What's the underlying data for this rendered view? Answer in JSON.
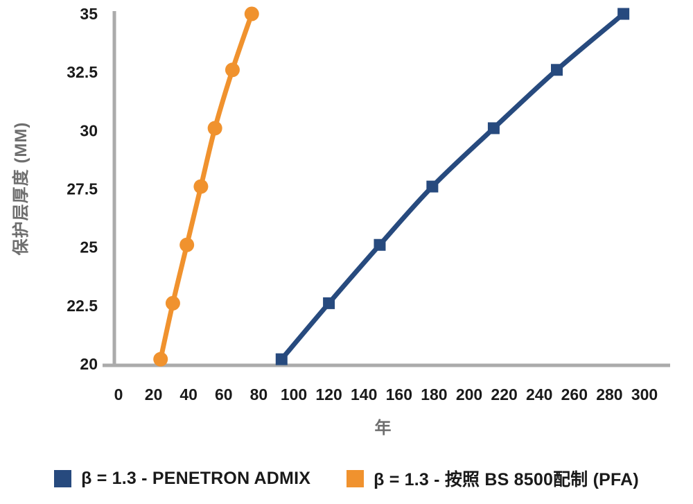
{
  "chart_data": {
    "type": "line",
    "title": "",
    "xlabel": "年",
    "ylabel": "保护层厚度 (MM)",
    "xlim": [
      0,
      300
    ],
    "ylim": [
      20,
      35
    ],
    "x_ticks": [
      0,
      20,
      40,
      60,
      80,
      100,
      120,
      140,
      160,
      180,
      200,
      220,
      240,
      260,
      280,
      300
    ],
    "y_ticks": [
      20,
      22.5,
      25,
      27.5,
      30,
      32.5,
      35
    ],
    "grid": false,
    "legend_position": "bottom",
    "axis_color": "#ababab",
    "tick_text_color": "#1a1a1a",
    "axis_title_color": "#6e6e6e",
    "series": [
      {
        "name": "β = 1.3 - PENETRON ADMIX",
        "color": "#274a7e",
        "marker": "square",
        "points": [
          [
            93,
            20.2
          ],
          [
            120,
            22.6
          ],
          [
            149,
            25.1
          ],
          [
            179,
            27.6
          ],
          [
            214,
            30.1
          ],
          [
            250,
            32.6
          ],
          [
            288,
            35
          ]
        ]
      },
      {
        "name": "β = 1.3 - 按照 BS 8500配制 (PFA)",
        "color": "#f0922e",
        "marker": "circle",
        "points": [
          [
            24,
            20.2
          ],
          [
            31,
            22.6
          ],
          [
            39,
            25.1
          ],
          [
            47,
            27.6
          ],
          [
            55,
            30.1
          ],
          [
            65,
            32.6
          ],
          [
            76,
            35
          ]
        ]
      }
    ]
  },
  "legend": {
    "items": [
      {
        "label": "β = 1.3 - PENETRON ADMIX"
      },
      {
        "label": "β = 1.3 - 按照 BS 8500配制 (PFA)"
      }
    ]
  }
}
